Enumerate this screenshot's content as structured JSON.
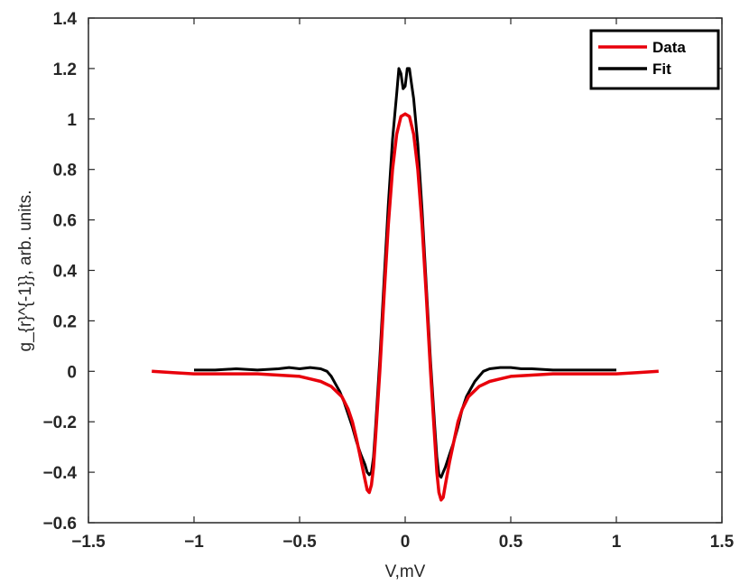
{
  "chart_data": {
    "type": "line",
    "title": "",
    "xlabel": "V,mV",
    "ylabel": "g_{r}^{-1}}, arb. units.",
    "xlim": [
      -1.5,
      1.5
    ],
    "ylim": [
      -0.6,
      1.4
    ],
    "xticks": [
      -1.5,
      -1,
      -0.5,
      0,
      0.5,
      1,
      1.5
    ],
    "xtick_labels": [
      "−1.5",
      "−1",
      "−0.5",
      "0",
      "0.5",
      "1",
      "1.5"
    ],
    "yticks": [
      -0.6,
      -0.4,
      -0.2,
      0,
      0.2,
      0.4,
      0.6,
      0.8,
      1,
      1.2,
      1.4
    ],
    "ytick_labels": [
      "−0.6",
      "−0.4",
      "−0.2",
      "0",
      "0.2",
      "0.4",
      "0.6",
      "0.8",
      "1",
      "1.2",
      "1.4"
    ],
    "grid": false,
    "legend_position": "top-right",
    "series": [
      {
        "name": "Data",
        "color": "#e8000b",
        "x": [
          -1.2,
          -1.1,
          -1.0,
          -0.9,
          -0.8,
          -0.7,
          -0.6,
          -0.5,
          -0.45,
          -0.4,
          -0.35,
          -0.3,
          -0.27,
          -0.25,
          -0.23,
          -0.21,
          -0.19,
          -0.18,
          -0.17,
          -0.16,
          -0.15,
          -0.14,
          -0.12,
          -0.1,
          -0.08,
          -0.06,
          -0.04,
          -0.02,
          0.0,
          0.02,
          0.04,
          0.06,
          0.08,
          0.1,
          0.12,
          0.14,
          0.15,
          0.16,
          0.17,
          0.18,
          0.19,
          0.21,
          0.23,
          0.25,
          0.27,
          0.3,
          0.35,
          0.4,
          0.45,
          0.5,
          0.6,
          0.7,
          0.8,
          0.9,
          1.0,
          1.1,
          1.2
        ],
        "y": [
          0.0,
          -0.005,
          -0.01,
          -0.01,
          -0.01,
          -0.01,
          -0.015,
          -0.02,
          -0.03,
          -0.04,
          -0.06,
          -0.1,
          -0.15,
          -0.2,
          -0.27,
          -0.35,
          -0.43,
          -0.47,
          -0.48,
          -0.45,
          -0.38,
          -0.26,
          0.0,
          0.3,
          0.58,
          0.8,
          0.94,
          1.01,
          1.02,
          1.01,
          0.94,
          0.8,
          0.58,
          0.3,
          0.0,
          -0.27,
          -0.4,
          -0.48,
          -0.51,
          -0.5,
          -0.45,
          -0.36,
          -0.28,
          -0.2,
          -0.15,
          -0.1,
          -0.06,
          -0.04,
          -0.03,
          -0.02,
          -0.015,
          -0.01,
          -0.01,
          -0.01,
          -0.01,
          -0.005,
          0.0
        ]
      },
      {
        "name": "Fit",
        "color": "#000000",
        "x": [
          -1.0,
          -0.9,
          -0.8,
          -0.7,
          -0.6,
          -0.55,
          -0.5,
          -0.45,
          -0.4,
          -0.37,
          -0.35,
          -0.33,
          -0.31,
          -0.29,
          -0.27,
          -0.25,
          -0.23,
          -0.21,
          -0.19,
          -0.18,
          -0.17,
          -0.16,
          -0.15,
          -0.14,
          -0.12,
          -0.1,
          -0.08,
          -0.06,
          -0.04,
          -0.03,
          -0.02,
          -0.01,
          0.0,
          0.01,
          0.02,
          0.03,
          0.04,
          0.06,
          0.08,
          0.1,
          0.12,
          0.14,
          0.15,
          0.16,
          0.17,
          0.18,
          0.19,
          0.21,
          0.23,
          0.25,
          0.27,
          0.29,
          0.31,
          0.33,
          0.35,
          0.37,
          0.4,
          0.45,
          0.5,
          0.55,
          0.6,
          0.7,
          0.8,
          0.9,
          1.0
        ],
        "y": [
          0.005,
          0.005,
          0.01,
          0.005,
          0.01,
          0.015,
          0.01,
          0.015,
          0.01,
          0.0,
          -0.02,
          -0.05,
          -0.08,
          -0.12,
          -0.17,
          -0.22,
          -0.28,
          -0.33,
          -0.37,
          -0.4,
          -0.41,
          -0.4,
          -0.34,
          -0.22,
          0.05,
          0.36,
          0.66,
          0.92,
          1.1,
          1.2,
          1.18,
          1.12,
          1.13,
          1.2,
          1.2,
          1.14,
          1.08,
          0.9,
          0.64,
          0.34,
          0.04,
          -0.22,
          -0.34,
          -0.41,
          -0.42,
          -0.4,
          -0.38,
          -0.33,
          -0.28,
          -0.22,
          -0.15,
          -0.1,
          -0.07,
          -0.04,
          -0.02,
          0.0,
          0.01,
          0.015,
          0.015,
          0.01,
          0.01,
          0.005,
          0.005,
          0.005,
          0.005
        ]
      }
    ]
  }
}
